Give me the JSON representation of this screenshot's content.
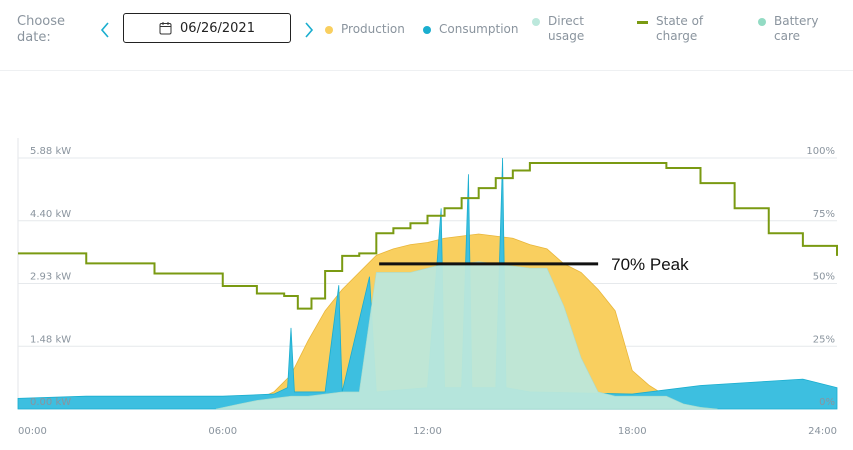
{
  "header": {
    "choose_label_line1": "Choose",
    "choose_label_line2": "date:",
    "date_value": "06/26/2021",
    "legend": [
      {
        "line1": "Production",
        "line2": "",
        "color": "#f9cf5f"
      },
      {
        "line1": "Consumption",
        "line2": "",
        "color": "#1aaecf"
      },
      {
        "line1": "Direct",
        "line2": "usage",
        "color": "#bce8dc"
      },
      {
        "line1": "State of",
        "line2": "charge",
        "color": "#7a9a12"
      },
      {
        "line1": "Battery",
        "line2": "care",
        "color": "#93dbc4"
      }
    ]
  },
  "chart_data": {
    "type": "area",
    "x_ticks": [
      "00:00",
      "06:00",
      "12:00",
      "18:00",
      "24:00"
    ],
    "y_left_ticks": [
      "0.00 kW",
      "1.48 kW",
      "2.93 kW",
      "4.40 kW",
      "5.88 kW"
    ],
    "y_right_ticks": [
      "0%",
      "25%",
      "50%",
      "75%",
      "100%"
    ],
    "ylim_kw": [
      0,
      5.88
    ],
    "ylim_pct": [
      0,
      100
    ],
    "annotation": {
      "text": "70% Peak",
      "value_kw": 3.4,
      "x_start": "10:35",
      "x_end": "17:00"
    },
    "series": [
      {
        "name": "Production",
        "x": [
          5.8,
          6.5,
          7,
          7.5,
          8,
          8.5,
          9,
          9.5,
          10,
          10.5,
          11,
          11.5,
          12,
          12.5,
          13,
          13.5,
          14,
          14.5,
          15,
          15.5,
          16,
          16.5,
          17,
          17.5,
          18,
          18.5,
          19,
          19.5,
          20,
          20.5
        ],
        "values": [
          0,
          0.12,
          0.22,
          0.4,
          0.8,
          1.6,
          2.3,
          2.8,
          3.2,
          3.6,
          3.75,
          3.85,
          3.9,
          4.0,
          4.05,
          4.1,
          4.05,
          4.0,
          3.85,
          3.75,
          3.4,
          3.2,
          2.8,
          2.3,
          0.9,
          0.55,
          0.3,
          0.12,
          0.04,
          0
        ]
      },
      {
        "name": "Direct usage",
        "x": [
          5.8,
          6.5,
          7,
          7.5,
          8,
          8.5,
          9,
          9.5,
          10,
          10.5,
          11,
          11.5,
          12,
          12.5,
          13,
          13.5,
          14,
          14.5,
          15,
          15.5,
          16,
          16.5,
          17,
          17.5,
          18,
          18.5,
          19,
          19.5,
          20,
          20.5
        ],
        "values": [
          0,
          0.12,
          0.2,
          0.25,
          0.3,
          0.3,
          0.35,
          0.4,
          0.4,
          3.2,
          3.2,
          3.2,
          3.3,
          3.4,
          3.4,
          3.45,
          3.4,
          3.35,
          3.3,
          3.3,
          2.4,
          1.2,
          0.4,
          0.3,
          0.3,
          0.3,
          0.3,
          0.12,
          0.04,
          0
        ]
      },
      {
        "name": "Consumption",
        "x": [
          0,
          2,
          4,
          6,
          7.5,
          7.9,
          8.0,
          8.1,
          9,
          9.4,
          9.5,
          10.3,
          10.5,
          12,
          12.4,
          12.5,
          13.0,
          13.2,
          13.3,
          14.0,
          14.2,
          14.3,
          15,
          18,
          19,
          20,
          21,
          22,
          23,
          24
        ],
        "values": [
          0.25,
          0.3,
          0.3,
          0.3,
          0.35,
          0.5,
          1.9,
          0.4,
          0.4,
          2.9,
          0.4,
          3.1,
          0.4,
          0.5,
          4.7,
          0.5,
          0.5,
          5.5,
          0.5,
          0.5,
          5.88,
          0.5,
          0.4,
          0.35,
          0.45,
          0.55,
          0.6,
          0.65,
          0.7,
          0.5
        ]
      },
      {
        "name": "State of charge",
        "x": [
          0,
          2,
          4,
          6,
          7,
          7.8,
          8.2,
          8.6,
          9,
          9.5,
          10,
          10.5,
          11,
          11.5,
          12,
          12.5,
          13,
          13.5,
          14,
          14.5,
          15,
          16,
          17,
          18,
          19,
          20,
          21,
          22,
          23,
          24
        ],
        "values": [
          62,
          58,
          54,
          49,
          46,
          45,
          40,
          44,
          55,
          61,
          62,
          70,
          72,
          74,
          77,
          80,
          84,
          88,
          92,
          95,
          98,
          98,
          98,
          98,
          96,
          90,
          80,
          70,
          65,
          61
        ]
      }
    ]
  }
}
